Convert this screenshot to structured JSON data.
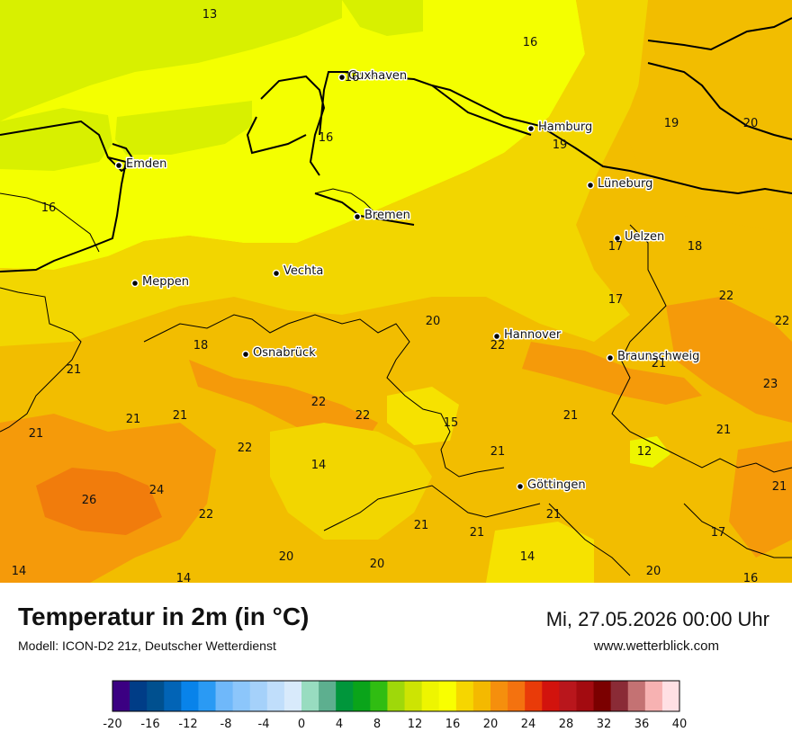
{
  "header": {
    "title": "Temperatur in 2m (in °C)",
    "subtitle": "Modell: ICON-D2 21z, Deutscher Wetterdienst",
    "datetime": "Mi, 27.05.2026 00:00 Uhr",
    "website": "www.wetterblick.com"
  },
  "cities": [
    {
      "name": "Cuxhaven"
    },
    {
      "name": "Hamburg"
    },
    {
      "name": "Emden"
    },
    {
      "name": "Lüneburg"
    },
    {
      "name": "Bremen"
    },
    {
      "name": "Uelzen"
    },
    {
      "name": "Vechta"
    },
    {
      "name": "Meppen"
    },
    {
      "name": "Hannover"
    },
    {
      "name": "Osnabrück"
    },
    {
      "name": "Braunschweig"
    },
    {
      "name": "Göttingen"
    }
  ],
  "temperature_values": [
    "13",
    "16",
    "16",
    "16",
    "19",
    "20",
    "19",
    "16",
    "17",
    "18",
    "17",
    "22",
    "20",
    "22",
    "18",
    "22",
    "21",
    "21",
    "23",
    "22",
    "21",
    "21",
    "22",
    "15",
    "21",
    "21",
    "22",
    "14",
    "21",
    "12",
    "24",
    "26",
    "21",
    "22",
    "21",
    "21",
    "21",
    "21",
    "17",
    "14",
    "20",
    "20",
    "14",
    "20",
    "14",
    "16"
  ],
  "legend": {
    "tick_labels": [
      "-20",
      "-16",
      "-12",
      "-8",
      "-4",
      "0",
      "4",
      "8",
      "12",
      "16",
      "20",
      "24",
      "28",
      "32",
      "36",
      "40"
    ],
    "colors": [
      "#3b0082",
      "#003d87",
      "#00508f",
      "#0264b6",
      "#0883ea",
      "#2a9af4",
      "#6fb8fa",
      "#8cc6fb",
      "#a5d1fa",
      "#c0defb",
      "#d8eafb",
      "#98dcc0",
      "#5daf8f",
      "#00963b",
      "#0aa41a",
      "#30bd12",
      "#9fd80a",
      "#cde403",
      "#eef500",
      "#f9ff00",
      "#f6d600",
      "#f4b900",
      "#f58f0d",
      "#f4720f",
      "#e93b09",
      "#d2130d",
      "#b9161c",
      "#a30b10",
      "#7b0000",
      "#8a2b36",
      "#c47273",
      "#f7b2b2",
      "#ffe0e4"
    ]
  },
  "map_colors": {
    "sea": "#d8f000",
    "zone_16": "#f4ff00",
    "zone_18": "#f2d600",
    "zone_20": "#f2bd00",
    "zone_22": "#f59a0a",
    "zone_24": "#f17c0c",
    "zone_14": "#f8f000",
    "border": "#000000"
  }
}
